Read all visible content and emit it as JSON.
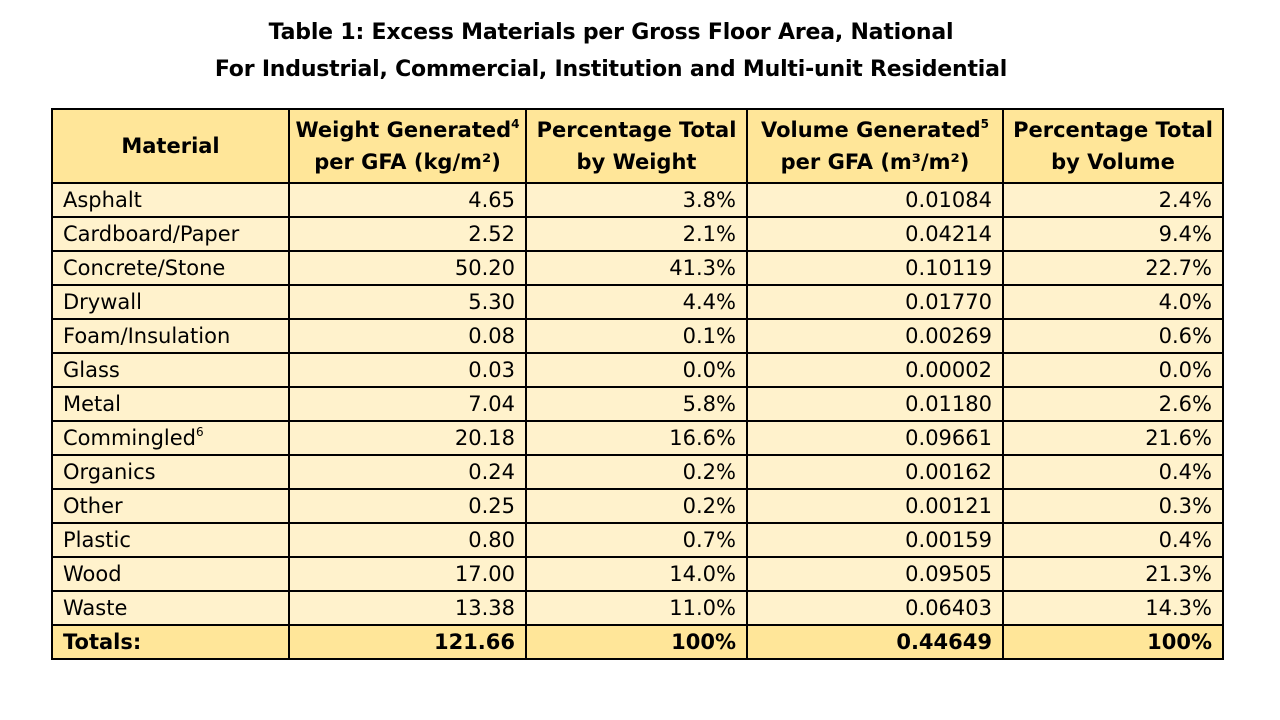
{
  "title": {
    "line1": "Table 1: Excess Materials per Gross Floor Area, National",
    "line2": "For Industrial, Commercial, Institution and Multi-unit Residential"
  },
  "headers": [
    {
      "lines": [
        {
          "text": "Material",
          "sup": ""
        }
      ]
    },
    {
      "lines": [
        {
          "text": "Weight Generated",
          "sup": "4"
        },
        {
          "text": "per GFA (kg/m²)",
          "sup": ""
        }
      ]
    },
    {
      "lines": [
        {
          "text": "Percentage Total",
          "sup": ""
        },
        {
          "text": "by Weight",
          "sup": ""
        }
      ]
    },
    {
      "lines": [
        {
          "text": "Volume Generated",
          "sup": "5"
        },
        {
          "text": "per GFA (m³/m²)",
          "sup": ""
        }
      ]
    },
    {
      "lines": [
        {
          "text": "Percentage Total",
          "sup": ""
        },
        {
          "text": "by Volume",
          "sup": ""
        }
      ]
    }
  ],
  "rows": [
    {
      "material": "Asphalt",
      "sup": "",
      "weight": "4.65",
      "pct_weight": "3.8%",
      "volume": "0.01084",
      "pct_volume": "2.4%"
    },
    {
      "material": "Cardboard/Paper",
      "sup": "",
      "weight": "2.52",
      "pct_weight": "2.1%",
      "volume": "0.04214",
      "pct_volume": "9.4%"
    },
    {
      "material": "Concrete/Stone",
      "sup": "",
      "weight": "50.20",
      "pct_weight": "41.3%",
      "volume": "0.10119",
      "pct_volume": "22.7%"
    },
    {
      "material": "Drywall",
      "sup": "",
      "weight": "5.30",
      "pct_weight": "4.4%",
      "volume": "0.01770",
      "pct_volume": "4.0%"
    },
    {
      "material": "Foam/Insulation",
      "sup": "",
      "weight": "0.08",
      "pct_weight": "0.1%",
      "volume": "0.00269",
      "pct_volume": "0.6%"
    },
    {
      "material": "Glass",
      "sup": "",
      "weight": "0.03",
      "pct_weight": "0.0%",
      "volume": "0.00002",
      "pct_volume": "0.0%"
    },
    {
      "material": "Metal",
      "sup": "",
      "weight": "7.04",
      "pct_weight": "5.8%",
      "volume": "0.01180",
      "pct_volume": "2.6%"
    },
    {
      "material": "Commingled",
      "sup": "6",
      "weight": "20.18",
      "pct_weight": "16.6%",
      "volume": "0.09661",
      "pct_volume": "21.6%"
    },
    {
      "material": "Organics",
      "sup": "",
      "weight": "0.24",
      "pct_weight": "0.2%",
      "volume": "0.00162",
      "pct_volume": "0.4%"
    },
    {
      "material": "Other",
      "sup": "",
      "weight": "0.25",
      "pct_weight": "0.2%",
      "volume": "0.00121",
      "pct_volume": "0.3%"
    },
    {
      "material": "Plastic",
      "sup": "",
      "weight": "0.80",
      "pct_weight": "0.7%",
      "volume": "0.00159",
      "pct_volume": "0.4%"
    },
    {
      "material": "Wood",
      "sup": "",
      "weight": "17.00",
      "pct_weight": "14.0%",
      "volume": "0.09505",
      "pct_volume": "21.3%"
    },
    {
      "material": "Waste",
      "sup": "",
      "weight": "13.38",
      "pct_weight": "11.0%",
      "volume": "0.06403",
      "pct_volume": "14.3%"
    }
  ],
  "totals": {
    "label": "Totals:",
    "weight": "121.66",
    "pct_weight": "100%",
    "volume": "0.44649",
    "pct_volume": "100%"
  },
  "colors": {
    "header_fill": "#ffe699",
    "row_fill": "#fff2cc",
    "border": "#000000"
  }
}
